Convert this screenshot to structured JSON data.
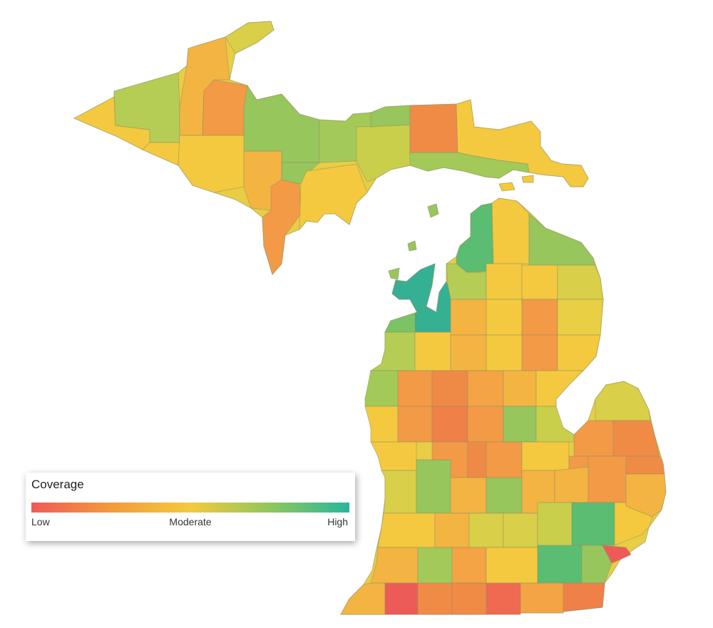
{
  "legend": {
    "title": "Coverage",
    "labels": {
      "low": "Low",
      "moderate": "Moderate",
      "high": "High"
    },
    "colors": {
      "low": "#ee5a57",
      "low_mid": "#f49a3c",
      "moderate": "#f5c93f",
      "mid_high": "#8fc75a",
      "high": "#26b79d"
    }
  },
  "palette": {
    "red": "#ed5b58",
    "orange_red": "#ef7d4a",
    "orange": "#f39a46",
    "light_orange": "#f4b441",
    "yellow": "#f4c93f",
    "yellow_green": "#d9cf48",
    "light_green": "#b5cd55",
    "green": "#97c65c",
    "green2": "#7bc463",
    "teal_green": "#5bbd71",
    "teal": "#35b093"
  }
}
